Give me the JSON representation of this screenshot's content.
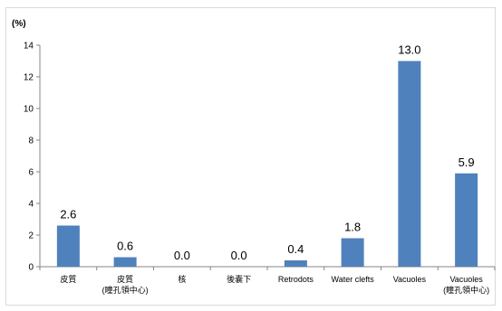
{
  "chart_data": {
    "type": "bar",
    "ylabel": "(%)",
    "ylim": [
      0,
      14
    ],
    "yticks": [
      "0",
      "2",
      "4",
      "6",
      "8",
      "10",
      "12",
      "14"
    ],
    "categories": [
      [
        "皮質"
      ],
      [
        "皮質",
        "(瞳孔領中心)"
      ],
      [
        "核"
      ],
      [
        "後嚢下"
      ],
      [
        "Retrodots"
      ],
      [
        "Water clefts"
      ],
      [
        "Vacuoles"
      ],
      [
        "Vacuoles",
        "(瞳孔領中心)"
      ]
    ],
    "values": [
      2.6,
      0.6,
      0.0,
      0.0,
      0.4,
      1.8,
      13.0,
      5.9
    ],
    "value_labels": [
      "2.6",
      "0.6",
      "0.0",
      "0.0",
      "0.4",
      "1.8",
      "13.0",
      "5.9"
    ],
    "bar_color": "#4f81bd",
    "grid": false,
    "legend": "none"
  }
}
